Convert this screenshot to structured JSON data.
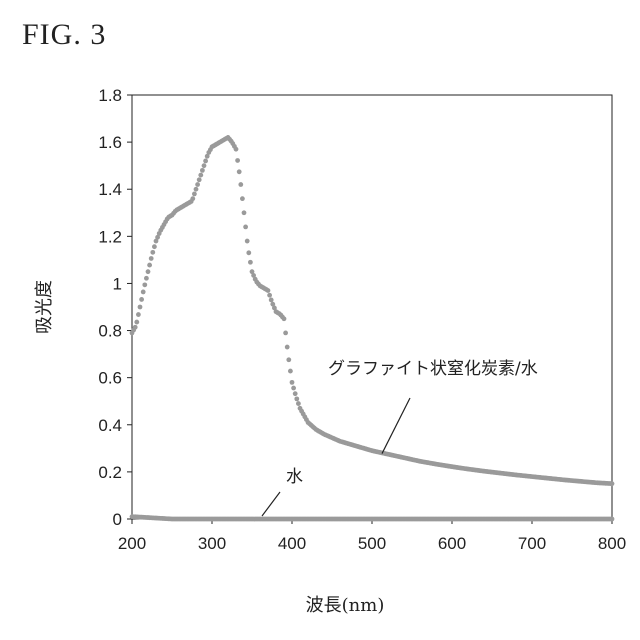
{
  "figure": {
    "label": "FIG. 3"
  },
  "chart_data": {
    "type": "scatter",
    "title": "",
    "xlabel": "波長(nm)",
    "ylabel": "吸光度",
    "xlim": [
      200,
      800
    ],
    "ylim": [
      0,
      1.8
    ],
    "x_ticks": [
      200,
      300,
      400,
      500,
      600,
      700,
      800
    ],
    "y_ticks": [
      0,
      0.2,
      0.4,
      0.6,
      0.8,
      1,
      1.2,
      1.4,
      1.6,
      1.8
    ],
    "x_tick_labels": [
      "200",
      "300",
      "400",
      "500",
      "600",
      "700",
      "800"
    ],
    "y_tick_labels": [
      "0",
      "0.2",
      "0.4",
      "0.6",
      "0.8",
      "1",
      "1.2",
      "1.4",
      "1.6",
      "1.8"
    ],
    "grid": false,
    "marker_color": "#9a9a9a",
    "series": [
      {
        "name": "グラファイト状窒化炭素/水",
        "points": [
          [
            200,
            0.79
          ],
          [
            205,
            0.82
          ],
          [
            210,
            0.9
          ],
          [
            215,
            0.98
          ],
          [
            220,
            1.05
          ],
          [
            225,
            1.12
          ],
          [
            230,
            1.18
          ],
          [
            235,
            1.22
          ],
          [
            240,
            1.25
          ],
          [
            245,
            1.28
          ],
          [
            250,
            1.29
          ],
          [
            255,
            1.31
          ],
          [
            260,
            1.32
          ],
          [
            265,
            1.33
          ],
          [
            270,
            1.34
          ],
          [
            275,
            1.35
          ],
          [
            280,
            1.4
          ],
          [
            285,
            1.45
          ],
          [
            290,
            1.5
          ],
          [
            295,
            1.55
          ],
          [
            300,
            1.58
          ],
          [
            305,
            1.59
          ],
          [
            310,
            1.6
          ],
          [
            315,
            1.61
          ],
          [
            320,
            1.62
          ],
          [
            325,
            1.6
          ],
          [
            330,
            1.57
          ],
          [
            335,
            1.45
          ],
          [
            340,
            1.3
          ],
          [
            345,
            1.15
          ],
          [
            350,
            1.05
          ],
          [
            355,
            1.01
          ],
          [
            360,
            0.99
          ],
          [
            365,
            0.98
          ],
          [
            370,
            0.97
          ],
          [
            375,
            0.92
          ],
          [
            380,
            0.88
          ],
          [
            385,
            0.87
          ],
          [
            390,
            0.85
          ],
          [
            395,
            0.7
          ],
          [
            400,
            0.58
          ],
          [
            405,
            0.52
          ],
          [
            410,
            0.47
          ],
          [
            415,
            0.44
          ],
          [
            420,
            0.41
          ],
          [
            430,
            0.38
          ],
          [
            440,
            0.36
          ],
          [
            450,
            0.345
          ],
          [
            460,
            0.33
          ],
          [
            470,
            0.32
          ],
          [
            480,
            0.31
          ],
          [
            490,
            0.3
          ],
          [
            500,
            0.29
          ],
          [
            520,
            0.275
          ],
          [
            540,
            0.26
          ],
          [
            560,
            0.245
          ],
          [
            580,
            0.233
          ],
          [
            600,
            0.222
          ],
          [
            620,
            0.212
          ],
          [
            640,
            0.203
          ],
          [
            660,
            0.195
          ],
          [
            680,
            0.187
          ],
          [
            700,
            0.18
          ],
          [
            720,
            0.173
          ],
          [
            740,
            0.166
          ],
          [
            760,
            0.16
          ],
          [
            780,
            0.154
          ],
          [
            800,
            0.15
          ]
        ],
        "label_pos": [
          390,
          0.62
        ]
      },
      {
        "name": "水",
        "points": [
          [
            200,
            0.01
          ],
          [
            250,
            0.0
          ],
          [
            300,
            0.0
          ],
          [
            350,
            0.0
          ],
          [
            400,
            0.0
          ],
          [
            450,
            0.0
          ],
          [
            500,
            0.0
          ],
          [
            550,
            0.0
          ],
          [
            600,
            0.0
          ],
          [
            650,
            0.0
          ],
          [
            700,
            0.0
          ],
          [
            750,
            0.0
          ],
          [
            800,
            0.0
          ]
        ],
        "label_pos": [
          370,
          0.14
        ]
      }
    ]
  }
}
